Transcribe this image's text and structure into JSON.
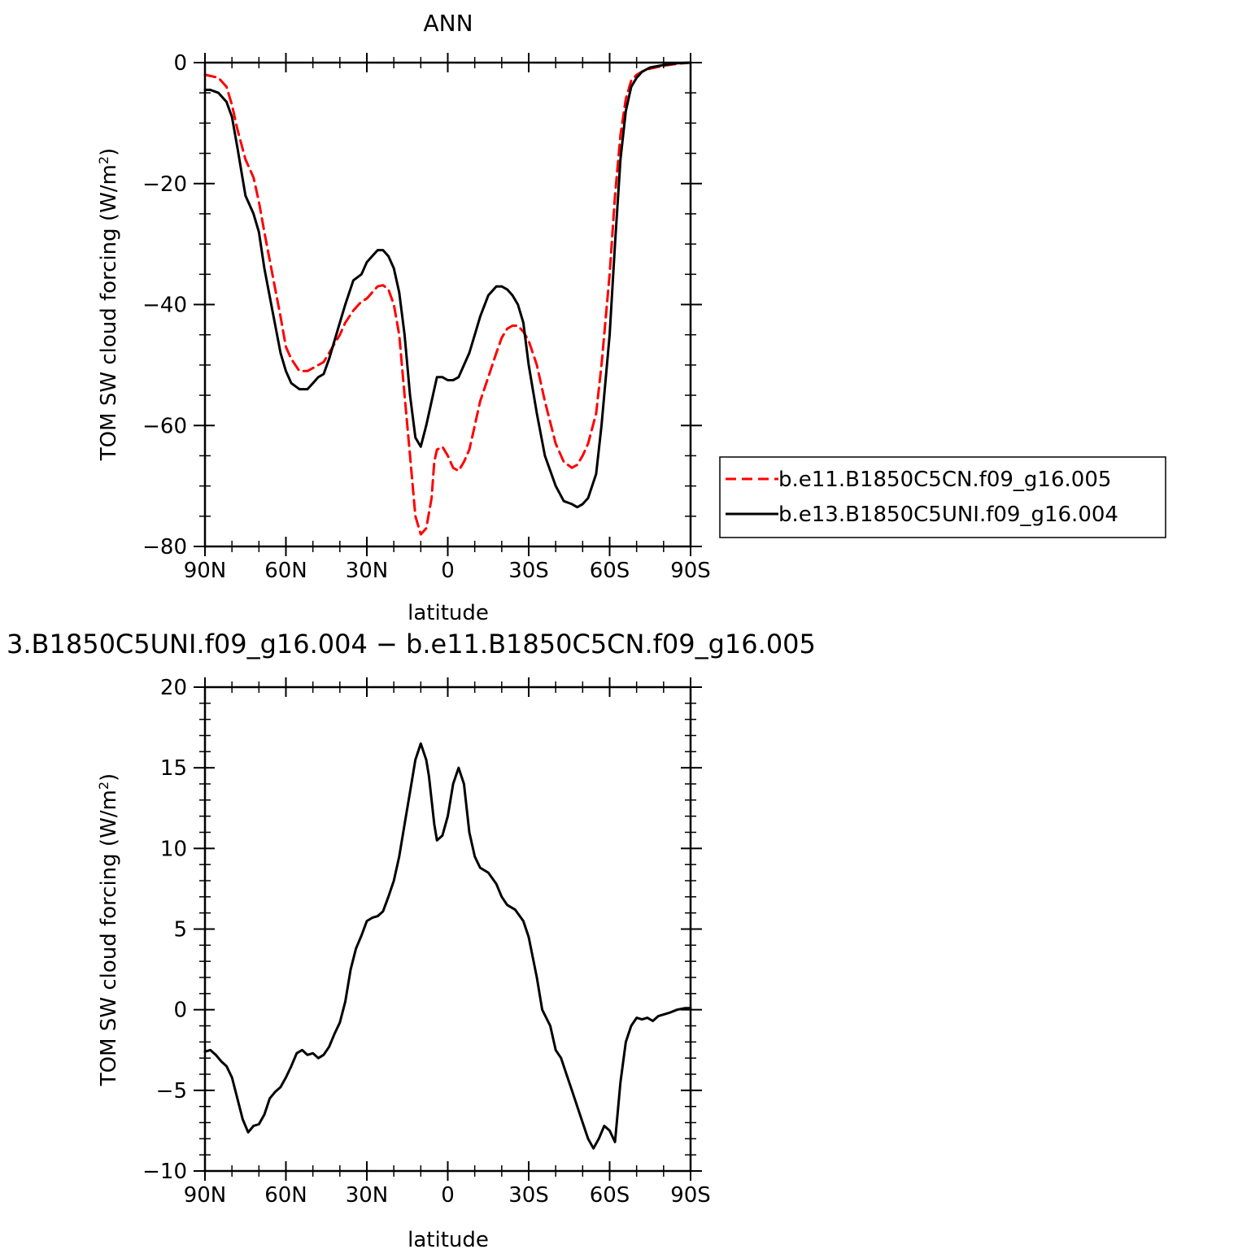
{
  "chart_data": [
    {
      "type": "line",
      "title": "ANN",
      "xlabel": "latitude",
      "ylabel": "TOM SW cloud forcing (W/m²)",
      "ylabel_main": "TOM SW cloud forcing (W/m",
      "ylabel_sup": "2",
      "ylabel_tail": ")",
      "xlim": [
        90,
        -90
      ],
      "ylim": [
        -80,
        0
      ],
      "xticks": [
        {
          "value": 90,
          "label": "90N"
        },
        {
          "value": 60,
          "label": "60N"
        },
        {
          "value": 30,
          "label": "30N"
        },
        {
          "value": 0,
          "label": "0"
        },
        {
          "value": -30,
          "label": "30S"
        },
        {
          "value": -60,
          "label": "60S"
        },
        {
          "value": -90,
          "label": "90S"
        }
      ],
      "yticks": [
        {
          "value": 0,
          "label": "0"
        },
        {
          "value": -20,
          "label": "−20"
        },
        {
          "value": -40,
          "label": "−40"
        },
        {
          "value": -60,
          "label": "−60"
        },
        {
          "value": -80,
          "label": "−80"
        }
      ],
      "legend_position": "right",
      "series": [
        {
          "name": "b.e11.B1850C5CN.f09_g16.005",
          "color": "#ff0000",
          "dash": "dashed",
          "x": [
            90,
            85,
            82,
            80,
            78,
            75,
            72,
            70,
            68,
            65,
            62,
            60,
            58,
            55,
            52,
            50,
            48,
            46,
            44,
            42,
            40,
            38,
            35,
            32,
            30,
            28,
            26,
            24,
            22,
            20,
            18,
            16,
            14,
            12,
            10,
            8,
            6,
            5,
            4,
            2,
            0,
            -2,
            -4,
            -6,
            -8,
            -10,
            -12,
            -15,
            -18,
            -20,
            -22,
            -24,
            -26,
            -28,
            -30,
            -33,
            -36,
            -40,
            -43,
            -46,
            -48,
            -50,
            -52,
            -55,
            -57,
            -60,
            -62,
            -64,
            -66,
            -68,
            -70,
            -72,
            -75,
            -80,
            -85,
            -90
          ],
          "y": [
            -2,
            -2.5,
            -4,
            -7,
            -11,
            -16,
            -19,
            -23,
            -28,
            -35,
            -42,
            -47,
            -49,
            -51,
            -51,
            -50.5,
            -50,
            -49.5,
            -48,
            -46.5,
            -45,
            -43,
            -41,
            -39.5,
            -39,
            -38,
            -37,
            -36.8,
            -37.5,
            -40,
            -45,
            -55,
            -65,
            -75,
            -78,
            -77,
            -72,
            -66,
            -64,
            -63.5,
            -65,
            -67,
            -67.5,
            -66,
            -64,
            -60,
            -56,
            -52,
            -48,
            -45.5,
            -44,
            -43.5,
            -43.5,
            -44.5,
            -46,
            -50,
            -56,
            -63,
            -66,
            -67,
            -66.5,
            -65,
            -63,
            -58,
            -50,
            -35,
            -22,
            -12,
            -6,
            -3,
            -2,
            -1.5,
            -1,
            -0.5,
            -0.2,
            0
          ]
        },
        {
          "name": "b.e13.B1850C5UNI.f09_g16.004",
          "color": "#000000",
          "dash": "solid",
          "x": [
            90,
            88,
            85,
            82,
            80,
            78,
            75,
            72,
            70,
            68,
            65,
            62,
            60,
            58,
            55,
            52,
            50,
            48,
            46,
            44,
            42,
            40,
            38,
            35,
            32,
            30,
            28,
            26,
            24,
            22,
            20,
            18,
            16,
            14,
            12,
            10,
            8,
            6,
            5,
            4,
            2,
            0,
            -2,
            -4,
            -6,
            -8,
            -10,
            -12,
            -15,
            -18,
            -20,
            -22,
            -24,
            -26,
            -28,
            -30,
            -33,
            -36,
            -40,
            -43,
            -46,
            -48,
            -50,
            -52,
            -55,
            -57,
            -60,
            -62,
            -64,
            -66,
            -68,
            -70,
            -72,
            -75,
            -80,
            -85,
            -90
          ],
          "y": [
            -4.5,
            -4.5,
            -5,
            -6.5,
            -9,
            -14,
            -22,
            -25,
            -28,
            -34,
            -41,
            -48,
            -51,
            -53,
            -54,
            -54,
            -53,
            -52,
            -51.5,
            -49,
            -46,
            -43,
            -40,
            -36,
            -35,
            -33,
            -32,
            -31,
            -31,
            -32,
            -34,
            -38,
            -45,
            -55,
            -62,
            -63.5,
            -60,
            -56,
            -54,
            -52,
            -52,
            -52.5,
            -52.5,
            -52,
            -50,
            -48,
            -45,
            -42,
            -38.5,
            -37,
            -37,
            -37.5,
            -38.5,
            -40,
            -43,
            -50,
            -58,
            -65,
            -70,
            -72.5,
            -73,
            -73.5,
            -73,
            -72,
            -68,
            -60,
            -45,
            -30,
            -16,
            -8,
            -4,
            -2.5,
            -1.5,
            -0.8,
            -0.4,
            -0.1,
            0
          ]
        }
      ]
    },
    {
      "type": "line",
      "title": "3.B1850C5UNI.f09_g16.004 − b.e11.B1850C5CN.f09_g16.005",
      "xlabel": "latitude",
      "ylabel": "TOM SW cloud forcing (W/m²)",
      "ylabel_main": "TOM SW cloud forcing (W/m",
      "ylabel_sup": "2",
      "ylabel_tail": ")",
      "xlim": [
        90,
        -90
      ],
      "ylim": [
        -10,
        20
      ],
      "xticks": [
        {
          "value": 90,
          "label": "90N"
        },
        {
          "value": 60,
          "label": "60N"
        },
        {
          "value": 30,
          "label": "30N"
        },
        {
          "value": 0,
          "label": "0"
        },
        {
          "value": -30,
          "label": "30S"
        },
        {
          "value": -60,
          "label": "60S"
        },
        {
          "value": -90,
          "label": "90S"
        }
      ],
      "yticks": [
        {
          "value": 20,
          "label": "20"
        },
        {
          "value": 15,
          "label": "15"
        },
        {
          "value": 10,
          "label": "10"
        },
        {
          "value": 5,
          "label": "5"
        },
        {
          "value": 0,
          "label": "0"
        },
        {
          "value": -5,
          "label": "−5"
        },
        {
          "value": -10,
          "label": "−10"
        }
      ],
      "series": [
        {
          "color": "#000000",
          "dash": "solid",
          "x": [
            90,
            88,
            86,
            84,
            82,
            80,
            78,
            76,
            74,
            72,
            70,
            68,
            66,
            64,
            62,
            60,
            58,
            56,
            54,
            52,
            50,
            48,
            46,
            44,
            42,
            40,
            38,
            36,
            34,
            32,
            30,
            28,
            26,
            24,
            22,
            20,
            18,
            16,
            14,
            12,
            10,
            8,
            7,
            6,
            5,
            4,
            2,
            0,
            -2,
            -4,
            -6,
            -8,
            -10,
            -12,
            -15,
            -18,
            -20,
            -22,
            -25,
            -28,
            -30,
            -33,
            -35,
            -38,
            -40,
            -42,
            -44,
            -46,
            -48,
            -50,
            -52,
            -54,
            -56,
            -58,
            -60,
            -62,
            -64,
            -66,
            -68,
            -70,
            -72,
            -74,
            -76,
            -78,
            -80,
            -82,
            -85,
            -88,
            -90
          ],
          "y": [
            -2.6,
            -2.5,
            -2.8,
            -3.2,
            -3.5,
            -4.2,
            -5.5,
            -6.8,
            -7.6,
            -7.2,
            -7.1,
            -6.5,
            -5.5,
            -5.1,
            -4.8,
            -4.2,
            -3.5,
            -2.7,
            -2.5,
            -2.8,
            -2.7,
            -3,
            -2.8,
            -2.3,
            -1.5,
            -0.8,
            0.5,
            2.5,
            3.8,
            4.6,
            5.5,
            5.7,
            5.8,
            6.1,
            7,
            8,
            9.5,
            11.5,
            13.5,
            15.5,
            16.5,
            15.5,
            14.5,
            13,
            11.5,
            10.5,
            10.8,
            12,
            14,
            15,
            14,
            11,
            9.5,
            8.8,
            8.5,
            7.8,
            7,
            6.5,
            6.2,
            5.5,
            4.5,
            2,
            0,
            -1,
            -2.5,
            -3,
            -4,
            -5,
            -6,
            -7,
            -8,
            -8.6,
            -8,
            -7.2,
            -7.5,
            -8.2,
            -4.5,
            -2,
            -1,
            -0.5,
            -0.6,
            -0.5,
            -0.7,
            -0.4,
            -0.3,
            -0.2,
            0,
            0.1,
            0.1
          ]
        }
      ]
    }
  ]
}
